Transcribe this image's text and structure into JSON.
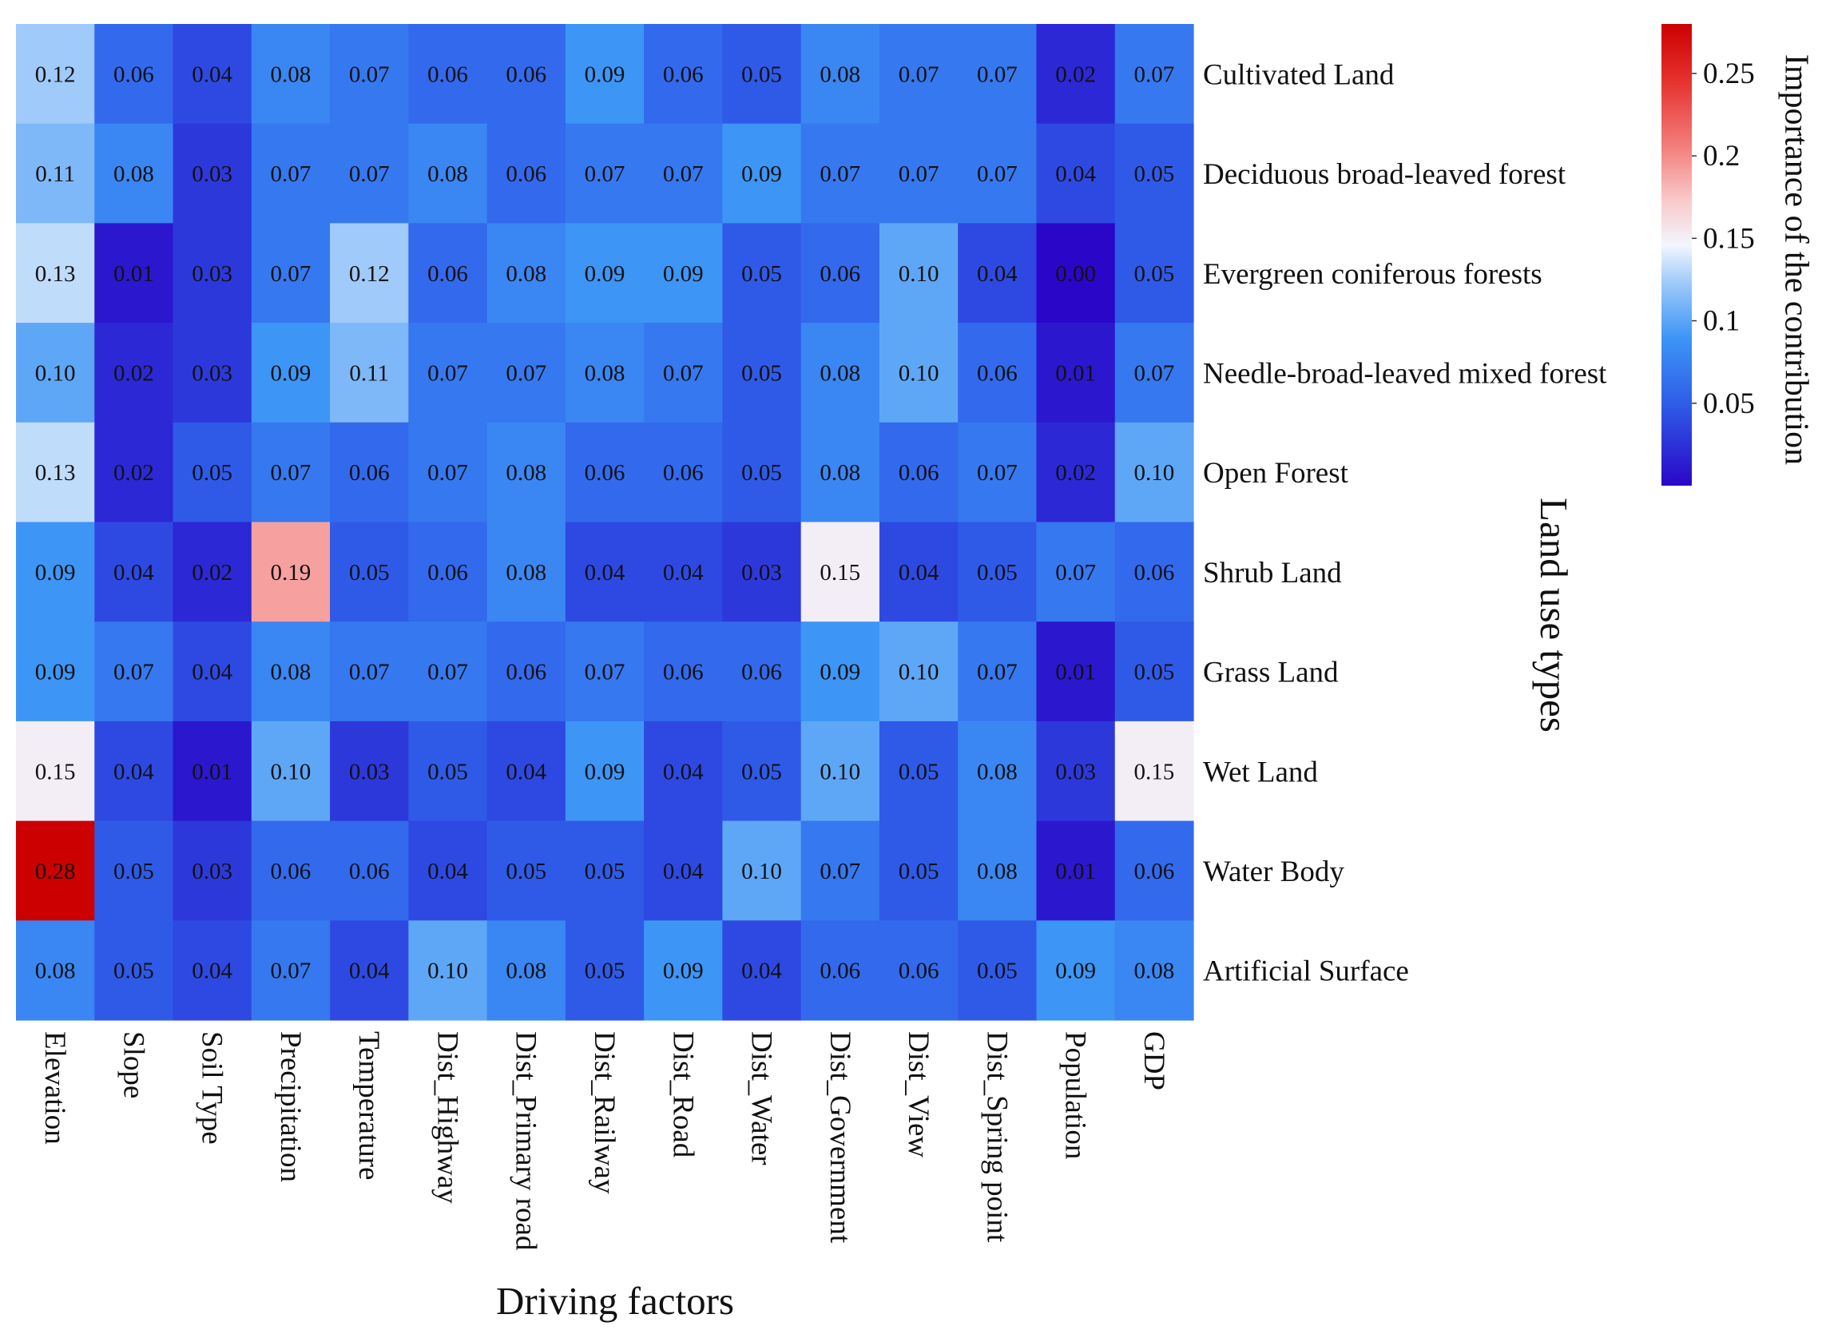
{
  "chart_data": {
    "type": "heatmap",
    "xlabel": "Driving factors",
    "ylabel": "Land use types",
    "x_categories": [
      "Elevation",
      "Slope",
      "Soil Type",
      "Precipitation",
      "Temperature",
      "Dist_Highway",
      "Dist_Primary road",
      "Dist_Railway",
      "Dist_Road",
      "Dist_Water",
      "Dist_Government",
      "Dist_View",
      "Dist_Spring point",
      "Population",
      "GDP"
    ],
    "y_categories": [
      "Cultivated Land",
      "Deciduous broad-leaved forest",
      "Evergreen coniferous forests",
      "Needle-broad-leaved mixed forest",
      "Open Forest",
      "Shrub Land",
      "Grass Land",
      "Wet Land",
      "Water Body",
      "Artificial Surface"
    ],
    "values": [
      [
        0.12,
        0.06,
        0.04,
        0.08,
        0.07,
        0.06,
        0.06,
        0.09,
        0.06,
        0.05,
        0.08,
        0.07,
        0.07,
        0.02,
        0.07
      ],
      [
        0.11,
        0.08,
        0.03,
        0.07,
        0.07,
        0.08,
        0.06,
        0.07,
        0.07,
        0.09,
        0.07,
        0.07,
        0.07,
        0.04,
        0.05
      ],
      [
        0.13,
        0.01,
        0.03,
        0.07,
        0.12,
        0.06,
        0.08,
        0.09,
        0.09,
        0.05,
        0.06,
        0.1,
        0.04,
        0.0,
        0.05
      ],
      [
        0.1,
        0.02,
        0.03,
        0.09,
        0.11,
        0.07,
        0.07,
        0.08,
        0.07,
        0.05,
        0.08,
        0.1,
        0.06,
        0.01,
        0.07
      ],
      [
        0.13,
        0.02,
        0.05,
        0.07,
        0.06,
        0.07,
        0.08,
        0.06,
        0.06,
        0.05,
        0.08,
        0.06,
        0.07,
        0.02,
        0.1
      ],
      [
        0.09,
        0.04,
        0.02,
        0.19,
        0.05,
        0.06,
        0.08,
        0.04,
        0.04,
        0.03,
        0.15,
        0.04,
        0.05,
        0.07,
        0.06
      ],
      [
        0.09,
        0.07,
        0.04,
        0.08,
        0.07,
        0.07,
        0.06,
        0.07,
        0.06,
        0.06,
        0.09,
        0.1,
        0.07,
        0.01,
        0.05
      ],
      [
        0.15,
        0.04,
        0.01,
        0.1,
        0.03,
        0.05,
        0.04,
        0.09,
        0.04,
        0.05,
        0.1,
        0.05,
        0.08,
        0.03,
        0.15
      ],
      [
        0.28,
        0.05,
        0.03,
        0.06,
        0.06,
        0.04,
        0.05,
        0.05,
        0.04,
        0.1,
        0.07,
        0.05,
        0.08,
        0.01,
        0.06
      ],
      [
        0.08,
        0.05,
        0.04,
        0.07,
        0.04,
        0.1,
        0.08,
        0.05,
        0.09,
        0.04,
        0.06,
        0.06,
        0.05,
        0.09,
        0.08
      ]
    ],
    "colorbar": {
      "title": "Importance of the contribution",
      "ticks": [
        0.05,
        0.1,
        0.15,
        0.2,
        0.25
      ],
      "tick_labels": [
        "0.05",
        "0.1",
        "0.15",
        "0.2",
        "0.25"
      ],
      "range": [
        0.0,
        0.28
      ],
      "colors": [
        "#2a06c8",
        "#2f86f4",
        "#f2f6ff",
        "#f0514e",
        "#cc0000"
      ]
    }
  }
}
